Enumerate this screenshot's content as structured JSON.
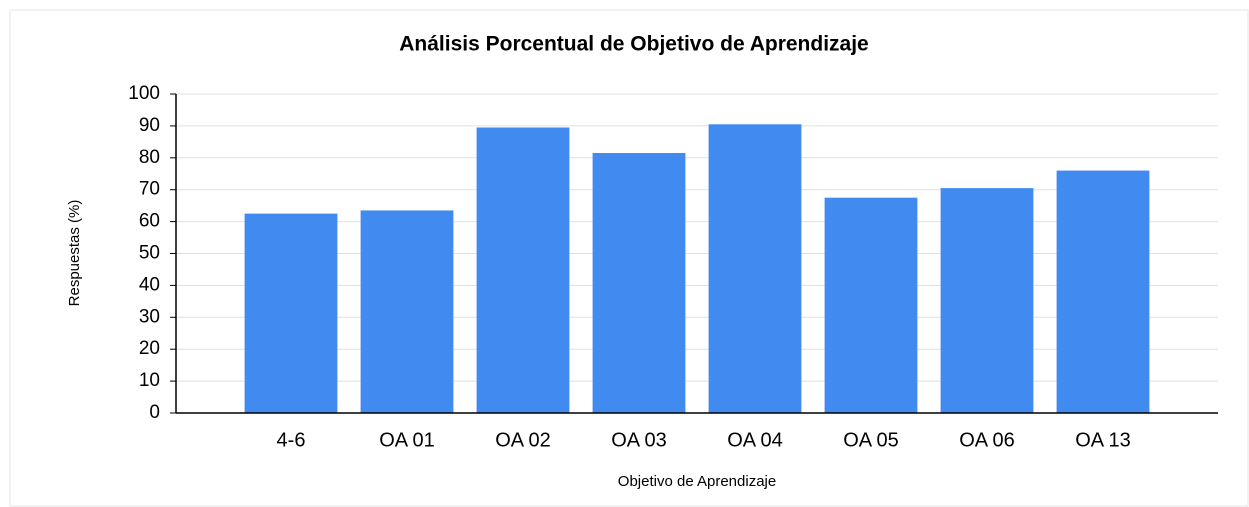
{
  "chart_data": {
    "type": "bar",
    "title": "Análisis Porcentual de Objetivo de Aprendizaje",
    "x_label": "Objetivo de Aprendizaje",
    "y_label": "Respuestas (%)",
    "categories": [
      "4-6",
      "OA 01",
      "OA 02",
      "OA 03",
      "OA 04",
      "OA 05",
      "OA 06",
      "OA 13"
    ],
    "values": [
      62.5,
      63.5,
      89.5,
      81.5,
      90.5,
      67.5,
      70.5,
      76
    ],
    "color": "#418bf0",
    "ylim": [
      0,
      100
    ],
    "yticks": [
      0,
      10,
      20,
      30,
      40,
      50,
      60,
      70,
      80,
      90,
      100
    ],
    "grid": true
  }
}
